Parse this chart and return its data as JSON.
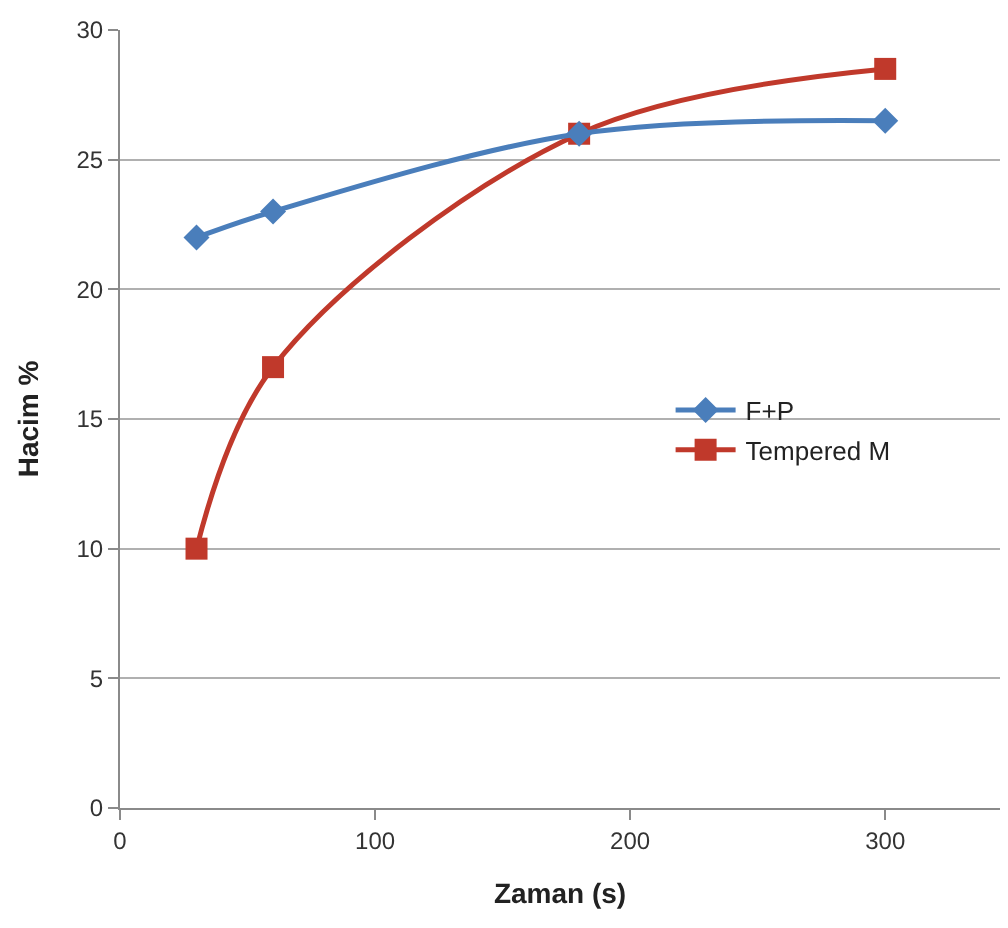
{
  "chart_data": {
    "type": "line",
    "xlabel": "Zaman (s)",
    "ylabel": "Hacim %",
    "xlim": [
      0,
      345
    ],
    "xticks": [
      0,
      100,
      200,
      300
    ],
    "ylim": [
      0,
      30
    ],
    "yticks": [
      0,
      5,
      10,
      15,
      20,
      25,
      30
    ],
    "grid": "y",
    "legend": "right",
    "series": [
      {
        "name": "F+P",
        "color": "#4a7ebb",
        "marker": "diamond",
        "x": [
          30,
          60,
          180,
          300
        ],
        "values": [
          22,
          23,
          26,
          26.5
        ]
      },
      {
        "name": "Tempered M",
        "color": "#c0392b",
        "marker": "square",
        "x": [
          30,
          60,
          180,
          300
        ],
        "values": [
          10,
          17,
          26,
          28.5
        ]
      }
    ]
  }
}
